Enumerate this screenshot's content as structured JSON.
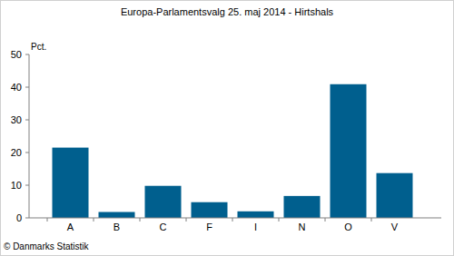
{
  "chart_data": {
    "type": "bar",
    "title": "Europa-Parlamentsvalg 25. maj 2014 - Hirtshals",
    "y_label": "Pct.",
    "source": "© Danmarks Statistik",
    "categories": [
      "A",
      "B",
      "C",
      "F",
      "I",
      "N",
      "O",
      "V"
    ],
    "values": [
      21.5,
      1.8,
      9.8,
      4.8,
      2.0,
      6.7,
      40.9,
      13.7
    ],
    "color": "#005f8e",
    "ylim": [
      0,
      50
    ],
    "yticks": [
      0,
      10,
      20,
      30,
      40,
      50
    ],
    "grid": false
  }
}
